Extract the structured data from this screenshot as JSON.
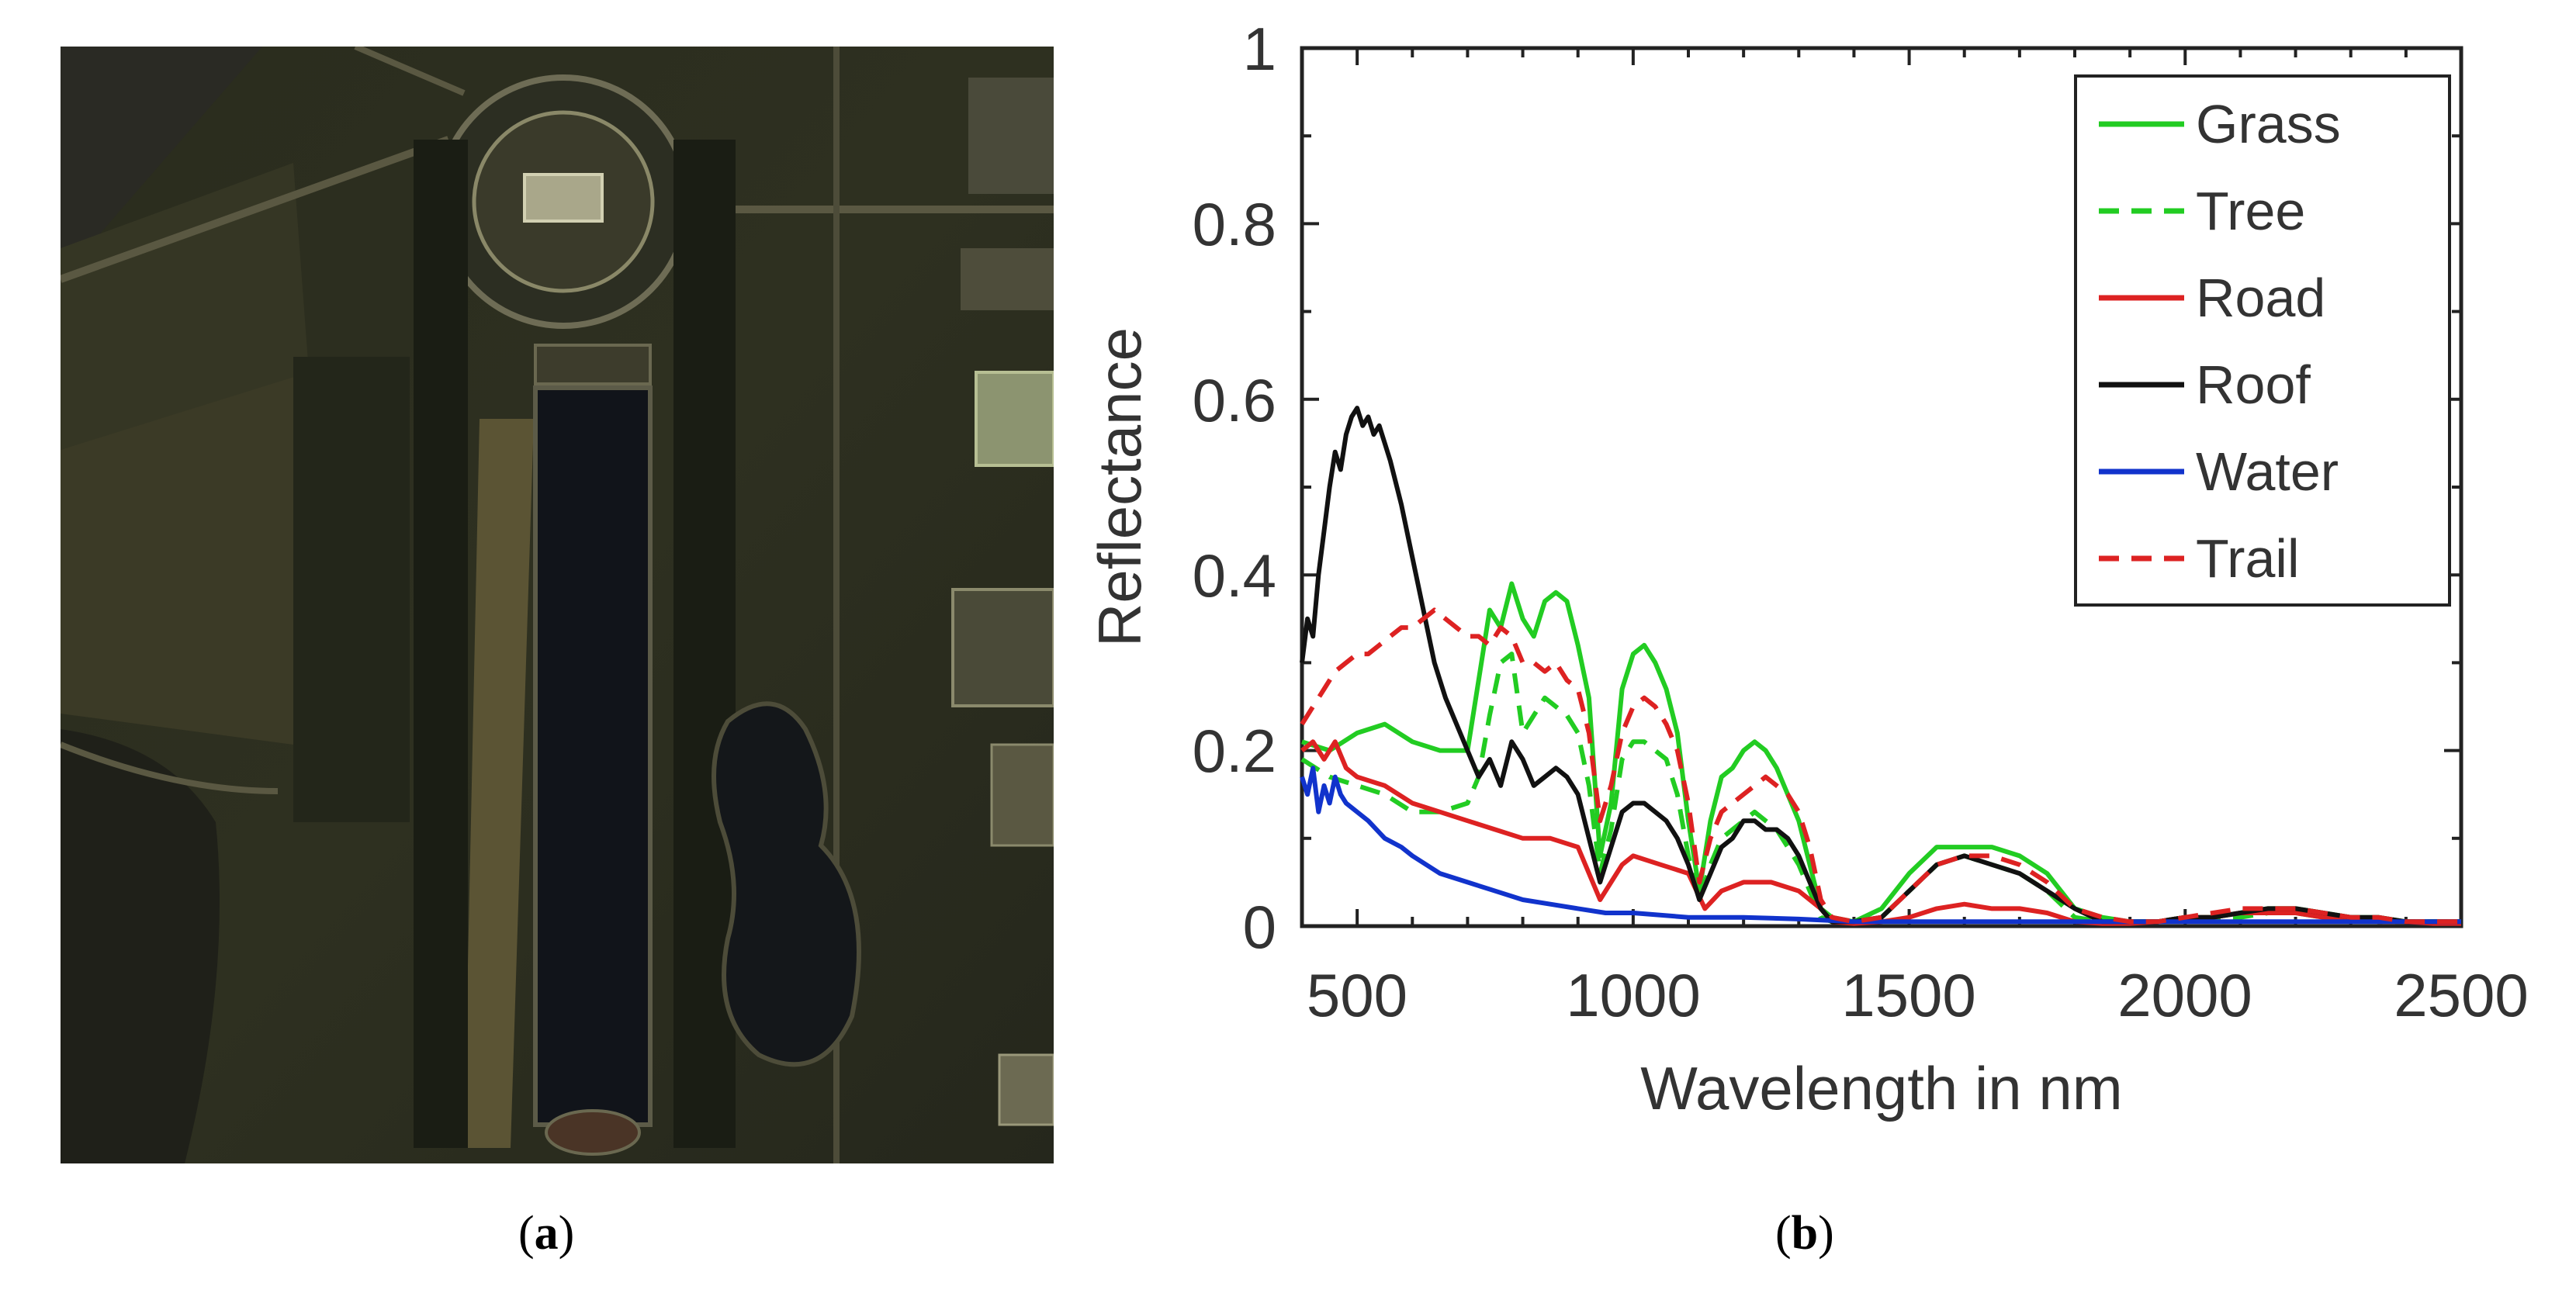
{
  "captions": {
    "a": "a",
    "b": "b"
  },
  "chart_data": {
    "type": "line",
    "xlabel": "Wavelength in nm",
    "ylabel": "Reflectance",
    "xlim": [
      400,
      2500
    ],
    "ylim": [
      0,
      1
    ],
    "xticks": [
      500,
      1000,
      1500,
      2000,
      2500
    ],
    "yticks": [
      0,
      0.2,
      0.4,
      0.6,
      0.8,
      1
    ],
    "ytick_labels": [
      "0",
      "0.2",
      "0.4",
      "0.6",
      "0.8",
      "1"
    ],
    "legend_position": "top-right",
    "series": [
      {
        "name": "Grass",
        "color": "#22cc22",
        "dash": "solid",
        "x": [
          400,
          450,
          500,
          550,
          600,
          650,
          700,
          720,
          740,
          760,
          780,
          800,
          820,
          840,
          860,
          880,
          900,
          920,
          940,
          960,
          980,
          1000,
          1020,
          1040,
          1060,
          1080,
          1100,
          1120,
          1140,
          1160,
          1180,
          1200,
          1220,
          1240,
          1260,
          1280,
          1300,
          1320,
          1340,
          1360,
          1400,
          1450,
          1500,
          1550,
          1600,
          1650,
          1700,
          1750,
          1800,
          1850,
          1900,
          1950,
          2000,
          2050,
          2100,
          2150,
          2200,
          2250,
          2300,
          2350,
          2400,
          2450,
          2500
        ],
        "y": [
          0.21,
          0.2,
          0.22,
          0.23,
          0.21,
          0.2,
          0.2,
          0.28,
          0.36,
          0.34,
          0.39,
          0.35,
          0.33,
          0.37,
          0.38,
          0.37,
          0.32,
          0.26,
          0.08,
          0.14,
          0.27,
          0.31,
          0.32,
          0.3,
          0.27,
          0.22,
          0.12,
          0.04,
          0.12,
          0.17,
          0.18,
          0.2,
          0.21,
          0.2,
          0.18,
          0.15,
          0.12,
          0.07,
          0.02,
          0.01,
          0.005,
          0.02,
          0.06,
          0.09,
          0.09,
          0.09,
          0.08,
          0.06,
          0.02,
          0.01,
          0.005,
          0.005,
          0.01,
          0.01,
          0.015,
          0.02,
          0.02,
          0.015,
          0.01,
          0.01,
          0.005,
          0.005,
          0.005
        ]
      },
      {
        "name": "Tree",
        "color": "#22cc22",
        "dash": "dashed",
        "x": [
          400,
          450,
          500,
          550,
          600,
          650,
          700,
          720,
          740,
          760,
          780,
          800,
          820,
          840,
          860,
          880,
          900,
          920,
          940,
          960,
          980,
          1000,
          1020,
          1040,
          1060,
          1080,
          1100,
          1120,
          1140,
          1160,
          1180,
          1200,
          1220,
          1240,
          1260,
          1280,
          1300,
          1320,
          1340,
          1360,
          1400,
          1450,
          1500,
          1550,
          1600,
          1650,
          1700,
          1750,
          1800,
          1850,
          1900,
          1950,
          2000,
          2050,
          2100,
          2150,
          2200,
          2250,
          2300,
          2350,
          2400,
          2450,
          2500
        ],
        "y": [
          0.19,
          0.17,
          0.16,
          0.15,
          0.13,
          0.13,
          0.14,
          0.17,
          0.24,
          0.3,
          0.31,
          0.22,
          0.24,
          0.26,
          0.25,
          0.24,
          0.22,
          0.16,
          0.06,
          0.11,
          0.19,
          0.21,
          0.21,
          0.2,
          0.19,
          0.15,
          0.08,
          0.03,
          0.07,
          0.1,
          0.11,
          0.12,
          0.13,
          0.12,
          0.11,
          0.09,
          0.07,
          0.04,
          0.01,
          0.005,
          0.005,
          0.01,
          0.04,
          0.07,
          0.08,
          0.07,
          0.06,
          0.04,
          0.01,
          0.005,
          0.005,
          0.005,
          0.01,
          0.01,
          0.01,
          0.015,
          0.015,
          0.01,
          0.01,
          0.005,
          0.005,
          0.005,
          0.005
        ]
      },
      {
        "name": "Road",
        "color": "#dd2222",
        "dash": "solid",
        "x": [
          400,
          420,
          440,
          460,
          480,
          500,
          550,
          600,
          650,
          700,
          750,
          800,
          850,
          900,
          940,
          960,
          980,
          1000,
          1050,
          1100,
          1130,
          1160,
          1200,
          1250,
          1300,
          1340,
          1360,
          1400,
          1450,
          1500,
          1550,
          1600,
          1650,
          1700,
          1750,
          1800,
          1850,
          1900,
          1950,
          2000,
          2050,
          2100,
          2150,
          2200,
          2250,
          2300,
          2350,
          2400,
          2450,
          2500
        ],
        "y": [
          0.2,
          0.21,
          0.19,
          0.21,
          0.18,
          0.17,
          0.16,
          0.14,
          0.13,
          0.12,
          0.11,
          0.1,
          0.1,
          0.09,
          0.03,
          0.05,
          0.07,
          0.08,
          0.07,
          0.06,
          0.02,
          0.04,
          0.05,
          0.05,
          0.04,
          0.02,
          0.005,
          0.003,
          0.005,
          0.01,
          0.02,
          0.025,
          0.02,
          0.02,
          0.015,
          0.005,
          0.003,
          0.003,
          0.005,
          0.01,
          0.01,
          0.015,
          0.015,
          0.015,
          0.01,
          0.01,
          0.005,
          0.005,
          0.003,
          0.003
        ]
      },
      {
        "name": "Roof",
        "color": "#111111",
        "dash": "solid",
        "x": [
          400,
          410,
          420,
          430,
          440,
          450,
          460,
          470,
          480,
          490,
          500,
          510,
          520,
          530,
          540,
          550,
          560,
          580,
          600,
          620,
          640,
          660,
          680,
          700,
          720,
          740,
          760,
          780,
          800,
          820,
          840,
          860,
          880,
          900,
          920,
          940,
          960,
          980,
          1000,
          1020,
          1040,
          1060,
          1080,
          1100,
          1120,
          1140,
          1160,
          1180,
          1200,
          1220,
          1240,
          1260,
          1280,
          1300,
          1320,
          1340,
          1360,
          1400,
          1450,
          1500,
          1550,
          1600,
          1650,
          1700,
          1750,
          1800,
          1850,
          1900,
          1950,
          2000,
          2050,
          2100,
          2150,
          2200,
          2250,
          2300,
          2350,
          2400,
          2450,
          2500
        ],
        "y": [
          0.3,
          0.35,
          0.33,
          0.4,
          0.45,
          0.5,
          0.54,
          0.52,
          0.56,
          0.58,
          0.59,
          0.57,
          0.58,
          0.56,
          0.57,
          0.55,
          0.53,
          0.48,
          0.42,
          0.36,
          0.3,
          0.26,
          0.23,
          0.2,
          0.17,
          0.19,
          0.16,
          0.21,
          0.19,
          0.16,
          0.17,
          0.18,
          0.17,
          0.15,
          0.1,
          0.05,
          0.09,
          0.13,
          0.14,
          0.14,
          0.13,
          0.12,
          0.1,
          0.07,
          0.03,
          0.06,
          0.09,
          0.1,
          0.12,
          0.12,
          0.11,
          0.11,
          0.1,
          0.08,
          0.05,
          0.02,
          0.005,
          0.005,
          0.01,
          0.04,
          0.07,
          0.08,
          0.07,
          0.06,
          0.04,
          0.02,
          0.005,
          0.005,
          0.005,
          0.01,
          0.01,
          0.015,
          0.02,
          0.02,
          0.015,
          0.01,
          0.01,
          0.005,
          0.005,
          0.005
        ]
      },
      {
        "name": "Water",
        "color": "#1133cc",
        "dash": "solid",
        "x": [
          400,
          410,
          420,
          430,
          440,
          450,
          460,
          470,
          480,
          500,
          520,
          550,
          580,
          600,
          650,
          700,
          750,
          800,
          850,
          900,
          950,
          1000,
          1100,
          1200,
          1300,
          1400,
          1500,
          1600,
          1700,
          1800,
          1900,
          2000,
          2100,
          2200,
          2300,
          2400,
          2500
        ],
        "y": [
          0.17,
          0.15,
          0.18,
          0.13,
          0.16,
          0.14,
          0.17,
          0.15,
          0.14,
          0.13,
          0.12,
          0.1,
          0.09,
          0.08,
          0.06,
          0.05,
          0.04,
          0.03,
          0.025,
          0.02,
          0.015,
          0.015,
          0.01,
          0.01,
          0.008,
          0.005,
          0.005,
          0.005,
          0.005,
          0.005,
          0.005,
          0.005,
          0.005,
          0.005,
          0.005,
          0.005,
          0.005
        ]
      },
      {
        "name": "Trail",
        "color": "#dd2222",
        "dash": "dashed",
        "x": [
          400,
          420,
          440,
          460,
          480,
          500,
          520,
          540,
          560,
          580,
          600,
          620,
          640,
          660,
          680,
          700,
          720,
          740,
          760,
          780,
          800,
          820,
          840,
          860,
          880,
          900,
          920,
          940,
          960,
          980,
          1000,
          1020,
          1040,
          1060,
          1080,
          1100,
          1120,
          1140,
          1160,
          1180,
          1200,
          1220,
          1240,
          1260,
          1280,
          1300,
          1320,
          1340,
          1360,
          1400,
          1450,
          1500,
          1550,
          1600,
          1650,
          1700,
          1750,
          1800,
          1850,
          1900,
          1950,
          2000,
          2050,
          2100,
          2150,
          2200,
          2250,
          2300,
          2350,
          2400,
          2450,
          2500
        ],
        "y": [
          0.23,
          0.25,
          0.27,
          0.29,
          0.3,
          0.31,
          0.31,
          0.32,
          0.33,
          0.34,
          0.34,
          0.35,
          0.36,
          0.35,
          0.34,
          0.33,
          0.33,
          0.32,
          0.34,
          0.33,
          0.3,
          0.3,
          0.29,
          0.3,
          0.28,
          0.27,
          0.22,
          0.12,
          0.16,
          0.22,
          0.25,
          0.26,
          0.25,
          0.23,
          0.2,
          0.14,
          0.05,
          0.1,
          0.13,
          0.14,
          0.15,
          0.16,
          0.17,
          0.16,
          0.15,
          0.13,
          0.09,
          0.03,
          0.01,
          0.005,
          0.01,
          0.04,
          0.07,
          0.08,
          0.08,
          0.07,
          0.05,
          0.02,
          0.01,
          0.005,
          0.005,
          0.01,
          0.015,
          0.02,
          0.02,
          0.02,
          0.015,
          0.01,
          0.01,
          0.005,
          0.005,
          0.005
        ]
      }
    ]
  }
}
